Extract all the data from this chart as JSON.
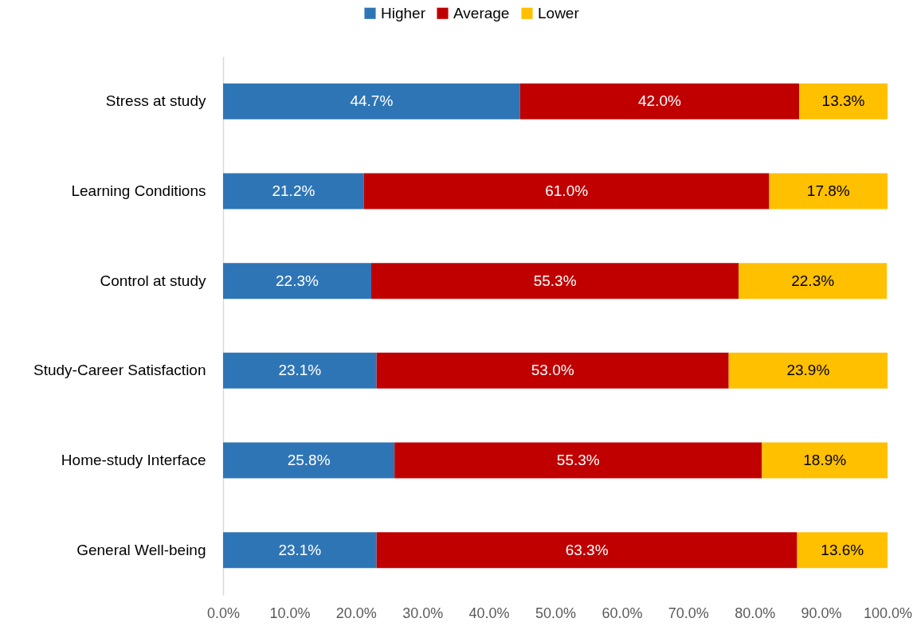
{
  "chart_data": {
    "type": "bar",
    "orientation": "horizontal",
    "stacked": true,
    "categories": [
      "Stress at study",
      "Learning Conditions",
      "Control at study",
      "Study-Career Satisfaction",
      "Home-study Interface",
      "General Well-being"
    ],
    "series": [
      {
        "name": "Higher",
        "color": "#2e75b6",
        "values": [
          44.7,
          21.2,
          22.3,
          23.1,
          25.8,
          23.1
        ],
        "value_labels": [
          "44.7%",
          "21.2%",
          "22.3%",
          "23.1%",
          "25.8%",
          "23.1%"
        ]
      },
      {
        "name": "Average",
        "color": "#c00000",
        "values": [
          42.0,
          61.0,
          55.3,
          53.0,
          55.3,
          63.3
        ],
        "value_labels": [
          "42.0%",
          "61.0%",
          "55.3%",
          "53.0%",
          "55.3%",
          "63.3%"
        ]
      },
      {
        "name": "Lower",
        "color": "#ffc000",
        "values": [
          13.3,
          17.8,
          22.3,
          23.9,
          18.9,
          13.6
        ],
        "value_labels": [
          "13.3%",
          "17.8%",
          "22.3%",
          "23.9%",
          "18.9%",
          "13.6%"
        ]
      }
    ],
    "xlim": [
      0,
      100
    ],
    "xticks": [
      {
        "value": 0,
        "label": "0.0%"
      },
      {
        "value": 10,
        "label": "10.0%"
      },
      {
        "value": 20,
        "label": "20.0%"
      },
      {
        "value": 30,
        "label": "30.0%"
      },
      {
        "value": 40,
        "label": "40.0%"
      },
      {
        "value": 50,
        "label": "50.0%"
      },
      {
        "value": 60,
        "label": "60.0%"
      },
      {
        "value": 70,
        "label": "70.0%"
      },
      {
        "value": 80,
        "label": "80.0%"
      },
      {
        "value": 90,
        "label": "90.0%"
      },
      {
        "value": 100,
        "label": "100.0%"
      }
    ],
    "grid": false,
    "legend": "top"
  }
}
